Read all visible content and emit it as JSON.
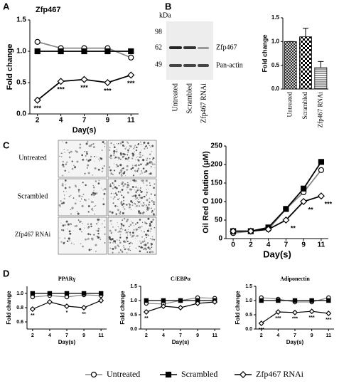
{
  "panels": [
    "A",
    "B",
    "C",
    "D"
  ],
  "blot": {
    "unit": "kDa",
    "markers": [
      "98",
      "62",
      "49"
    ],
    "bands": [
      "Zfp467",
      "Pan-actin"
    ],
    "lanes": [
      "Untreated",
      "Scrambled",
      "Zfp467 RNAi"
    ]
  },
  "micrographs": {
    "rows": [
      "Untreated",
      "Scrambled",
      "Zfp467 RNAi"
    ]
  },
  "legend": [
    {
      "name": "Untreated",
      "marker": "circle",
      "color": "#888888"
    },
    {
      "name": "Scrambled",
      "marker": "square",
      "color": "#000000"
    },
    {
      "name": "Zfp467 RNAi",
      "marker": "diamond",
      "color": "#000000"
    }
  ],
  "chart_data": [
    {
      "type": "line",
      "title": "Zfp467",
      "x_label": "Day(s)",
      "y_label": "Fold change",
      "categories": [
        "2",
        "4",
        "7",
        "9",
        "11"
      ],
      "ylim": [
        0,
        1.5
      ],
      "yticks": [
        {
          "value": 0,
          "label": "0.0"
        },
        0.5,
        {
          "value": 1,
          "label": "1.0"
        },
        1.5
      ],
      "series": [
        {
          "marker": "circle",
          "color": "#888888",
          "values": [
            1.15,
            1.05,
            1.05,
            1.05,
            0.9
          ]
        },
        {
          "marker": "square",
          "color": "#000000",
          "values": [
            1.0,
            1.0,
            1.0,
            1.0,
            1.0
          ]
        },
        {
          "marker": "diamond",
          "color": "#000000",
          "values": [
            0.22,
            0.52,
            0.55,
            0.5,
            0.62
          ],
          "annotations": [
            "***",
            "***",
            "***",
            "***",
            "***"
          ]
        }
      ]
    },
    {
      "type": "bar",
      "y_label": "Fold change",
      "categories": [
        "Untreated",
        "Scrambled",
        "Zfp467 RNAi"
      ],
      "values": [
        1.0,
        1.1,
        0.45
      ],
      "errors": [
        0,
        0.18,
        0.13
      ],
      "patterns": [
        "crosshatch",
        "checker",
        "hlines"
      ],
      "ylim": [
        0,
        1.5
      ],
      "yticks": [
        {
          "value": 0,
          "label": "0.0"
        },
        0.5,
        {
          "value": 1,
          "label": "1.0"
        },
        1.5
      ]
    },
    {
      "type": "line",
      "x_label": "Day(s)",
      "y_label": "Oil Red O elution (μM)",
      "categories": [
        "0",
        "2",
        "4",
        "7",
        "9",
        "11"
      ],
      "ylim": [
        0,
        250
      ],
      "yticks": [
        0,
        50,
        100,
        150,
        200,
        250
      ],
      "series": [
        {
          "marker": "circle",
          "color": "#888888",
          "values": [
            15,
            20,
            25,
            80,
            125,
            185
          ]
        },
        {
          "marker": "square",
          "color": "#000000",
          "values": [
            20,
            20,
            30,
            80,
            135,
            207
          ]
        },
        {
          "marker": "diamond",
          "color": "#000000",
          "values": [
            20,
            20,
            25,
            50,
            100,
            115
          ],
          "annotations": [
            null,
            null,
            null,
            "**",
            "**",
            "***"
          ]
        }
      ]
    },
    {
      "type": "line",
      "title": "PPARγ",
      "x_label": "Day(s)",
      "y_label": "Fold change",
      "categories": [
        "2",
        "4",
        "7",
        "9",
        "11"
      ],
      "ylim": [
        0.5,
        1.1
      ],
      "yticks": [
        0.6,
        0.8,
        {
          "value": 1,
          "label": "1.0"
        }
      ],
      "series": [
        {
          "marker": "circle",
          "color": "#888888",
          "values": [
            0.95,
            0.97,
            0.95,
            0.98,
            0.97
          ]
        },
        {
          "marker": "square",
          "color": "#000000",
          "values": [
            1.0,
            1.0,
            1.0,
            1.0,
            1.0
          ]
        },
        {
          "marker": "diamond",
          "color": "#000000",
          "values": [
            0.78,
            0.88,
            0.82,
            0.8,
            0.9
          ],
          "annotations": [
            "**",
            null,
            "*",
            "**",
            null
          ]
        }
      ]
    },
    {
      "type": "line",
      "title": "C/EBPα",
      "x_label": "Day(s)",
      "y_label": "Fold change",
      "categories": [
        "2",
        "4",
        "7",
        "9",
        "11"
      ],
      "ylim": [
        0,
        1.5
      ],
      "yticks": [
        {
          "value": 0,
          "label": "0.0"
        },
        0.5,
        {
          "value": 1,
          "label": "1.0"
        },
        1.5
      ],
      "series": [
        {
          "marker": "circle",
          "color": "#888888",
          "values": [
            0.9,
            0.88,
            1.0,
            1.1,
            1.08
          ]
        },
        {
          "marker": "square",
          "color": "#000000",
          "values": [
            1.0,
            1.0,
            1.0,
            1.0,
            1.0
          ]
        },
        {
          "marker": "diamond",
          "color": "#000000",
          "values": [
            0.6,
            0.8,
            0.75,
            0.9,
            0.95
          ],
          "annotations": [
            "**",
            null,
            null,
            null,
            null
          ]
        }
      ]
    },
    {
      "type": "line",
      "title": "Adiponectin",
      "x_label": "Day(s)",
      "y_label": "Fold change",
      "categories": [
        "2",
        "4",
        "7",
        "9",
        "11"
      ],
      "ylim": [
        0,
        1.5
      ],
      "yticks": [
        {
          "value": 0,
          "label": "0.0"
        },
        0.5,
        {
          "value": 1,
          "label": "1.0"
        },
        1.5
      ],
      "series": [
        {
          "marker": "circle",
          "color": "#888888",
          "values": [
            1.1,
            1.05,
            0.95,
            0.95,
            1.1
          ]
        },
        {
          "marker": "square",
          "color": "#000000",
          "values": [
            1.0,
            1.0,
            1.0,
            1.0,
            1.0
          ]
        },
        {
          "marker": "diamond",
          "color": "#000000",
          "values": [
            0.2,
            0.6,
            0.58,
            0.62,
            0.55
          ],
          "annotations": [
            "***",
            "***",
            "***",
            "***",
            "***"
          ]
        }
      ]
    }
  ]
}
